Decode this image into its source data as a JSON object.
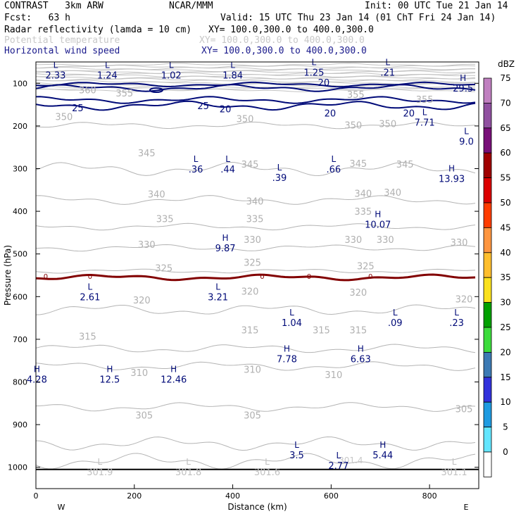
{
  "header": {
    "model": "CONTRAST   3km ARW",
    "org": "NCAR/MMM",
    "init": "Init: 00 UTC Tue 21 Jan 14",
    "fcst": "Fcst:   63 h",
    "valid": "Valid: 15 UTC Thu 23 Jan 14 (01 ChT Fri 24 Jan 14)",
    "fields": [
      {
        "name": "Radar reflectivity (lamda = 10 cm)",
        "xy": "XY= 100.0,300.0 to 400.0,300.0",
        "color": "#000000"
      },
      {
        "name": "Potential temperature",
        "xy": "XY= 100.0,300.0 to 400.0,300.0",
        "color": "#c8c8c8"
      },
      {
        "name": "Horizontal wind speed",
        "xy": "XY= 100.0,300.0 to 400.0,300.0",
        "color": "#1a1a8c"
      }
    ]
  },
  "chart_data": {
    "type": "cross-section",
    "xlabel": "Distance (km)",
    "ylabel": "Pressure (hPa)",
    "xlim": [
      0,
      900
    ],
    "ylim": [
      1050,
      50
    ],
    "x_ticks": [
      0,
      200,
      400,
      600,
      800
    ],
    "y_ticks": [
      100,
      200,
      300,
      400,
      500,
      600,
      700,
      800,
      900,
      1000
    ],
    "x_end_labels": {
      "left": "W",
      "right": "E"
    },
    "surface_pressure": 1005,
    "theta_labels": [
      {
        "text": "360",
        "x": 105,
        "p": 118
      },
      {
        "text": "355",
        "x": 180,
        "p": 125
      },
      {
        "text": "355",
        "x": 650,
        "p": 128
      },
      {
        "text": "355",
        "x": 790,
        "p": 140
      },
      {
        "text": "350",
        "x": 57,
        "p": 180
      },
      {
        "text": "350",
        "x": 425,
        "p": 185
      },
      {
        "text": "350",
        "x": 645,
        "p": 200
      },
      {
        "text": "350",
        "x": 715,
        "p": 197
      },
      {
        "text": "345",
        "x": 225,
        "p": 265
      },
      {
        "text": "345",
        "x": 435,
        "p": 292
      },
      {
        "text": "345",
        "x": 655,
        "p": 290
      },
      {
        "text": "345",
        "x": 750,
        "p": 292
      },
      {
        "text": "340",
        "x": 245,
        "p": 362
      },
      {
        "text": "340",
        "x": 445,
        "p": 378
      },
      {
        "text": "340",
        "x": 665,
        "p": 360
      },
      {
        "text": "340",
        "x": 725,
        "p": 358
      },
      {
        "text": "335",
        "x": 262,
        "p": 420
      },
      {
        "text": "335",
        "x": 445,
        "p": 420
      },
      {
        "text": "335",
        "x": 665,
        "p": 402
      },
      {
        "text": "330",
        "x": 225,
        "p": 480
      },
      {
        "text": "330",
        "x": 440,
        "p": 468
      },
      {
        "text": "330",
        "x": 645,
        "p": 468
      },
      {
        "text": "330",
        "x": 710,
        "p": 468
      },
      {
        "text": "330",
        "x": 860,
        "p": 475
      },
      {
        "text": "325",
        "x": 260,
        "p": 535
      },
      {
        "text": "325",
        "x": 440,
        "p": 522
      },
      {
        "text": "325",
        "x": 670,
        "p": 530
      },
      {
        "text": "320",
        "x": 215,
        "p": 610
      },
      {
        "text": "320",
        "x": 435,
        "p": 590
      },
      {
        "text": "320",
        "x": 655,
        "p": 592
      },
      {
        "text": "320",
        "x": 870,
        "p": 608
      },
      {
        "text": "315",
        "x": 105,
        "p": 695
      },
      {
        "text": "315",
        "x": 435,
        "p": 680
      },
      {
        "text": "315",
        "x": 580,
        "p": 680
      },
      {
        "text": "315",
        "x": 655,
        "p": 680
      },
      {
        "text": "310",
        "x": 210,
        "p": 780
      },
      {
        "text": "310",
        "x": 440,
        "p": 773
      },
      {
        "text": "310",
        "x": 605,
        "p": 785
      },
      {
        "text": "305",
        "x": 220,
        "p": 880
      },
      {
        "text": "305",
        "x": 440,
        "p": 880
      },
      {
        "text": "305",
        "x": 870,
        "p": 865
      }
    ],
    "reflectivity_zero_label": "0",
    "reflectivity_zero_label_x": [
      20,
      110,
      460,
      555,
      680
    ],
    "wind_labels": [
      {
        "text": "20",
        "x": 585,
        "p": 100
      },
      {
        "text": "25",
        "x": 85,
        "p": 160
      },
      {
        "text": "25",
        "x": 340,
        "p": 155
      },
      {
        "text": "20",
        "x": 385,
        "p": 162
      },
      {
        "text": "20",
        "x": 598,
        "p": 172
      },
      {
        "text": "20",
        "x": 758,
        "p": 172
      }
    ],
    "extrema": [
      {
        "type": "L",
        "value": "2.33",
        "x": 40,
        "p": 70,
        "field": "wind"
      },
      {
        "type": "L",
        "value": "1.24",
        "x": 145,
        "p": 70,
        "field": "wind"
      },
      {
        "type": "L",
        "value": "1.02",
        "x": 275,
        "p": 70,
        "field": "wind"
      },
      {
        "type": "L",
        "value": "1.84",
        "x": 400,
        "p": 70,
        "field": "wind"
      },
      {
        "type": "L",
        "value": "1.25",
        "x": 565,
        "p": 63,
        "field": "wind"
      },
      {
        "type": "L",
        "value": ".21",
        "x": 715,
        "p": 63,
        "field": "wind"
      },
      {
        "type": "H",
        "value": "29.5",
        "x": 868,
        "p": 100,
        "field": "wind"
      },
      {
        "type": "L",
        "value": "7.71",
        "x": 790,
        "p": 180,
        "field": "wind"
      },
      {
        "type": "L",
        "value": "9.0",
        "x": 875,
        "p": 225,
        "field": "wind"
      },
      {
        "type": "L",
        "value": ".36",
        "x": 325,
        "p": 290,
        "field": "wind"
      },
      {
        "type": "L",
        "value": ".44",
        "x": 390,
        "p": 290,
        "field": "wind"
      },
      {
        "type": "L",
        "value": ".39",
        "x": 495,
        "p": 310,
        "field": "wind"
      },
      {
        "type": "L",
        "value": ".66",
        "x": 605,
        "p": 290,
        "field": "wind"
      },
      {
        "type": "H",
        "value": "13.93",
        "x": 845,
        "p": 312,
        "field": "wind"
      },
      {
        "type": "H",
        "value": "10.07",
        "x": 695,
        "p": 420,
        "field": "wind"
      },
      {
        "type": "H",
        "value": "9.87",
        "x": 385,
        "p": 475,
        "field": "wind"
      },
      {
        "type": "L",
        "value": "2.61",
        "x": 110,
        "p": 590,
        "field": "wind"
      },
      {
        "type": "L",
        "value": "3.21",
        "x": 370,
        "p": 590,
        "field": "wind"
      },
      {
        "type": "L",
        "value": "1.04",
        "x": 520,
        "p": 650,
        "field": "wind"
      },
      {
        "type": "L",
        "value": ".09",
        "x": 730,
        "p": 650,
        "field": "wind"
      },
      {
        "type": "L",
        "value": ".23",
        "x": 855,
        "p": 650,
        "field": "wind"
      },
      {
        "type": "H",
        "value": "7.78",
        "x": 510,
        "p": 735,
        "field": "wind"
      },
      {
        "type": "H",
        "value": "6.63",
        "x": 660,
        "p": 735,
        "field": "wind"
      },
      {
        "type": "H",
        "value": "4.28",
        "x": 2,
        "p": 783,
        "field": "wind"
      },
      {
        "type": "H",
        "value": "12.5",
        "x": 150,
        "p": 783,
        "field": "wind"
      },
      {
        "type": "H",
        "value": "12.46",
        "x": 280,
        "p": 783,
        "field": "wind"
      },
      {
        "type": "L",
        "value": "3.5",
        "x": 530,
        "p": 960,
        "field": "wind"
      },
      {
        "type": "H",
        "value": "5.44",
        "x": 705,
        "p": 960,
        "field": "wind"
      },
      {
        "type": "L",
        "value": "2.77",
        "x": 615,
        "p": 985,
        "field": "wind"
      },
      {
        "type": "L",
        "value": "301.9",
        "x": 130,
        "p": 1000,
        "field": "theta"
      },
      {
        "type": "L",
        "value": "301.8",
        "x": 310,
        "p": 1000,
        "field": "theta"
      },
      {
        "type": "L",
        "value": "301.6",
        "x": 470,
        "p": 1000,
        "field": "theta"
      },
      {
        "type": "L",
        "value": "301.1",
        "x": 850,
        "p": 1000,
        "field": "theta"
      }
    ],
    "faint_label": {
      "text": "301.4",
      "x": 640,
      "p": 985
    }
  },
  "colorbar": {
    "title": "dBZ",
    "levels": [
      {
        "value": "75",
        "color": "#c080c0"
      },
      {
        "value": "70",
        "color": "#9050a0"
      },
      {
        "value": "65",
        "color": "#780f78"
      },
      {
        "value": "60",
        "color": "#a00000"
      },
      {
        "value": "55",
        "color": "#dc0000"
      },
      {
        "value": "50",
        "color": "#ff3c00"
      },
      {
        "value": "45",
        "color": "#ff9640"
      },
      {
        "value": "40",
        "color": "#ffbe2d"
      },
      {
        "value": "35",
        "color": "#fae11e"
      },
      {
        "value": "30",
        "color": "#00a000"
      },
      {
        "value": "25",
        "color": "#3cdc3c"
      },
      {
        "value": "20",
        "color": "#3c7ab4"
      },
      {
        "value": "15",
        "color": "#3232dc"
      },
      {
        "value": "10",
        "color": "#1e9be1"
      },
      {
        "value": "5",
        "color": "#64e6ff"
      },
      {
        "value": "0",
        "color": "#ffffff"
      }
    ]
  },
  "colors": {
    "theta": "#b4b4b4",
    "wind": "#000a78",
    "reflectivity": "#820000"
  }
}
